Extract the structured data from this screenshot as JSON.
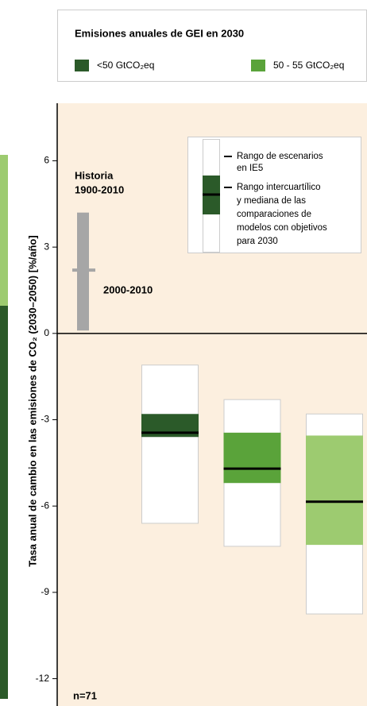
{
  "chart_data": {
    "type": "range",
    "title": "Emisiones anuales de GEI en 2030",
    "y_label": "Tasa anual de cambio en las emisiones de CO₂ (2030–2050) [%/año]",
    "ylim": [
      -12.95,
      8
    ],
    "yticks": [
      6,
      3,
      0,
      -3,
      -6,
      -9,
      -12
    ],
    "series": [
      {
        "name": "<50 GtCO₂eq",
        "color": "#2b5a29",
        "range": [
          -1.1,
          -6.6
        ],
        "iqr": [
          -2.8,
          -3.6
        ],
        "median": -3.45
      },
      {
        "name": "50 - 55 GtCO₂eq",
        "color": "#5aa33a",
        "range": [
          -2.3,
          -7.4
        ],
        "iqr": [
          -3.45,
          -5.2
        ],
        "median": -4.7
      },
      {
        "color": "#9dcb70",
        "range": [
          -2.8,
          -9.75
        ],
        "iqr": [
          -3.55,
          -7.35
        ],
        "median": -5.85
      }
    ],
    "history": {
      "label": [
        "Historia",
        "1900-2010"
      ],
      "range": [
        0.1,
        4.2
      ],
      "recent_label": "2000-2010",
      "recent_value": 2.2,
      "color": "#a6a6a6"
    },
    "key": {
      "range_label": [
        "Rango de escenarios",
        "en IE5"
      ],
      "iqr_label": [
        "Rango intercuartílico",
        "y mediana de las",
        "comparaciones de",
        "modelos con objetivos",
        "para 2030"
      ]
    },
    "n_label": "n=71"
  }
}
